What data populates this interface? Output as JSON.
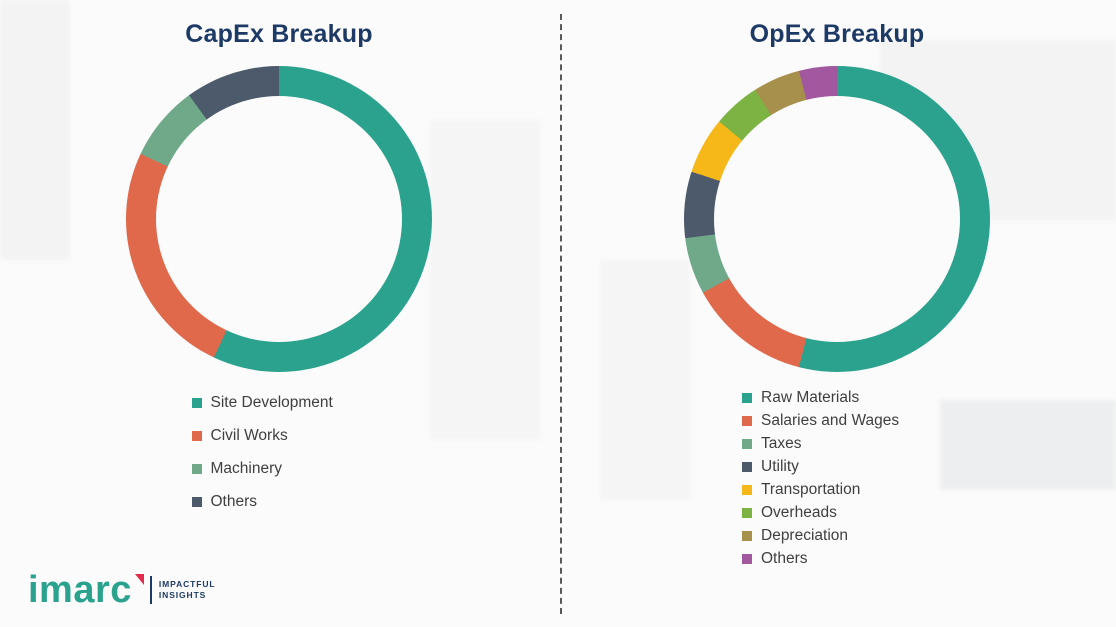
{
  "chart_data": [
    {
      "type": "pie",
      "donut": true,
      "title": "CapEx Breakup",
      "labels": [
        "Site Development",
        "Civil Works",
        "Machinery",
        "Others"
      ],
      "values": [
        57,
        25,
        8,
        10
      ],
      "colors": [
        "#2BA28E",
        "#E0684B",
        "#6FA98A",
        "#4D5A6B"
      ],
      "legend_position": "bottom"
    },
    {
      "type": "pie",
      "donut": true,
      "title": "OpEx Breakup",
      "labels": [
        "Raw Materials",
        "Salaries and Wages",
        "Taxes",
        "Utility",
        "Transportation",
        "Overheads",
        "Depreciation",
        "Others"
      ],
      "values": [
        54,
        13,
        6,
        7,
        6,
        5,
        5,
        4
      ],
      "colors": [
        "#2BA28E",
        "#E0684B",
        "#6FA98A",
        "#4D5A6B",
        "#F6B719",
        "#7CB342",
        "#A78F4C",
        "#A2589F"
      ],
      "legend_position": "bottom"
    }
  ],
  "logo": {
    "brand": "imarc",
    "tagline": [
      "IMPACTFUL",
      "INSIGHTS"
    ]
  }
}
